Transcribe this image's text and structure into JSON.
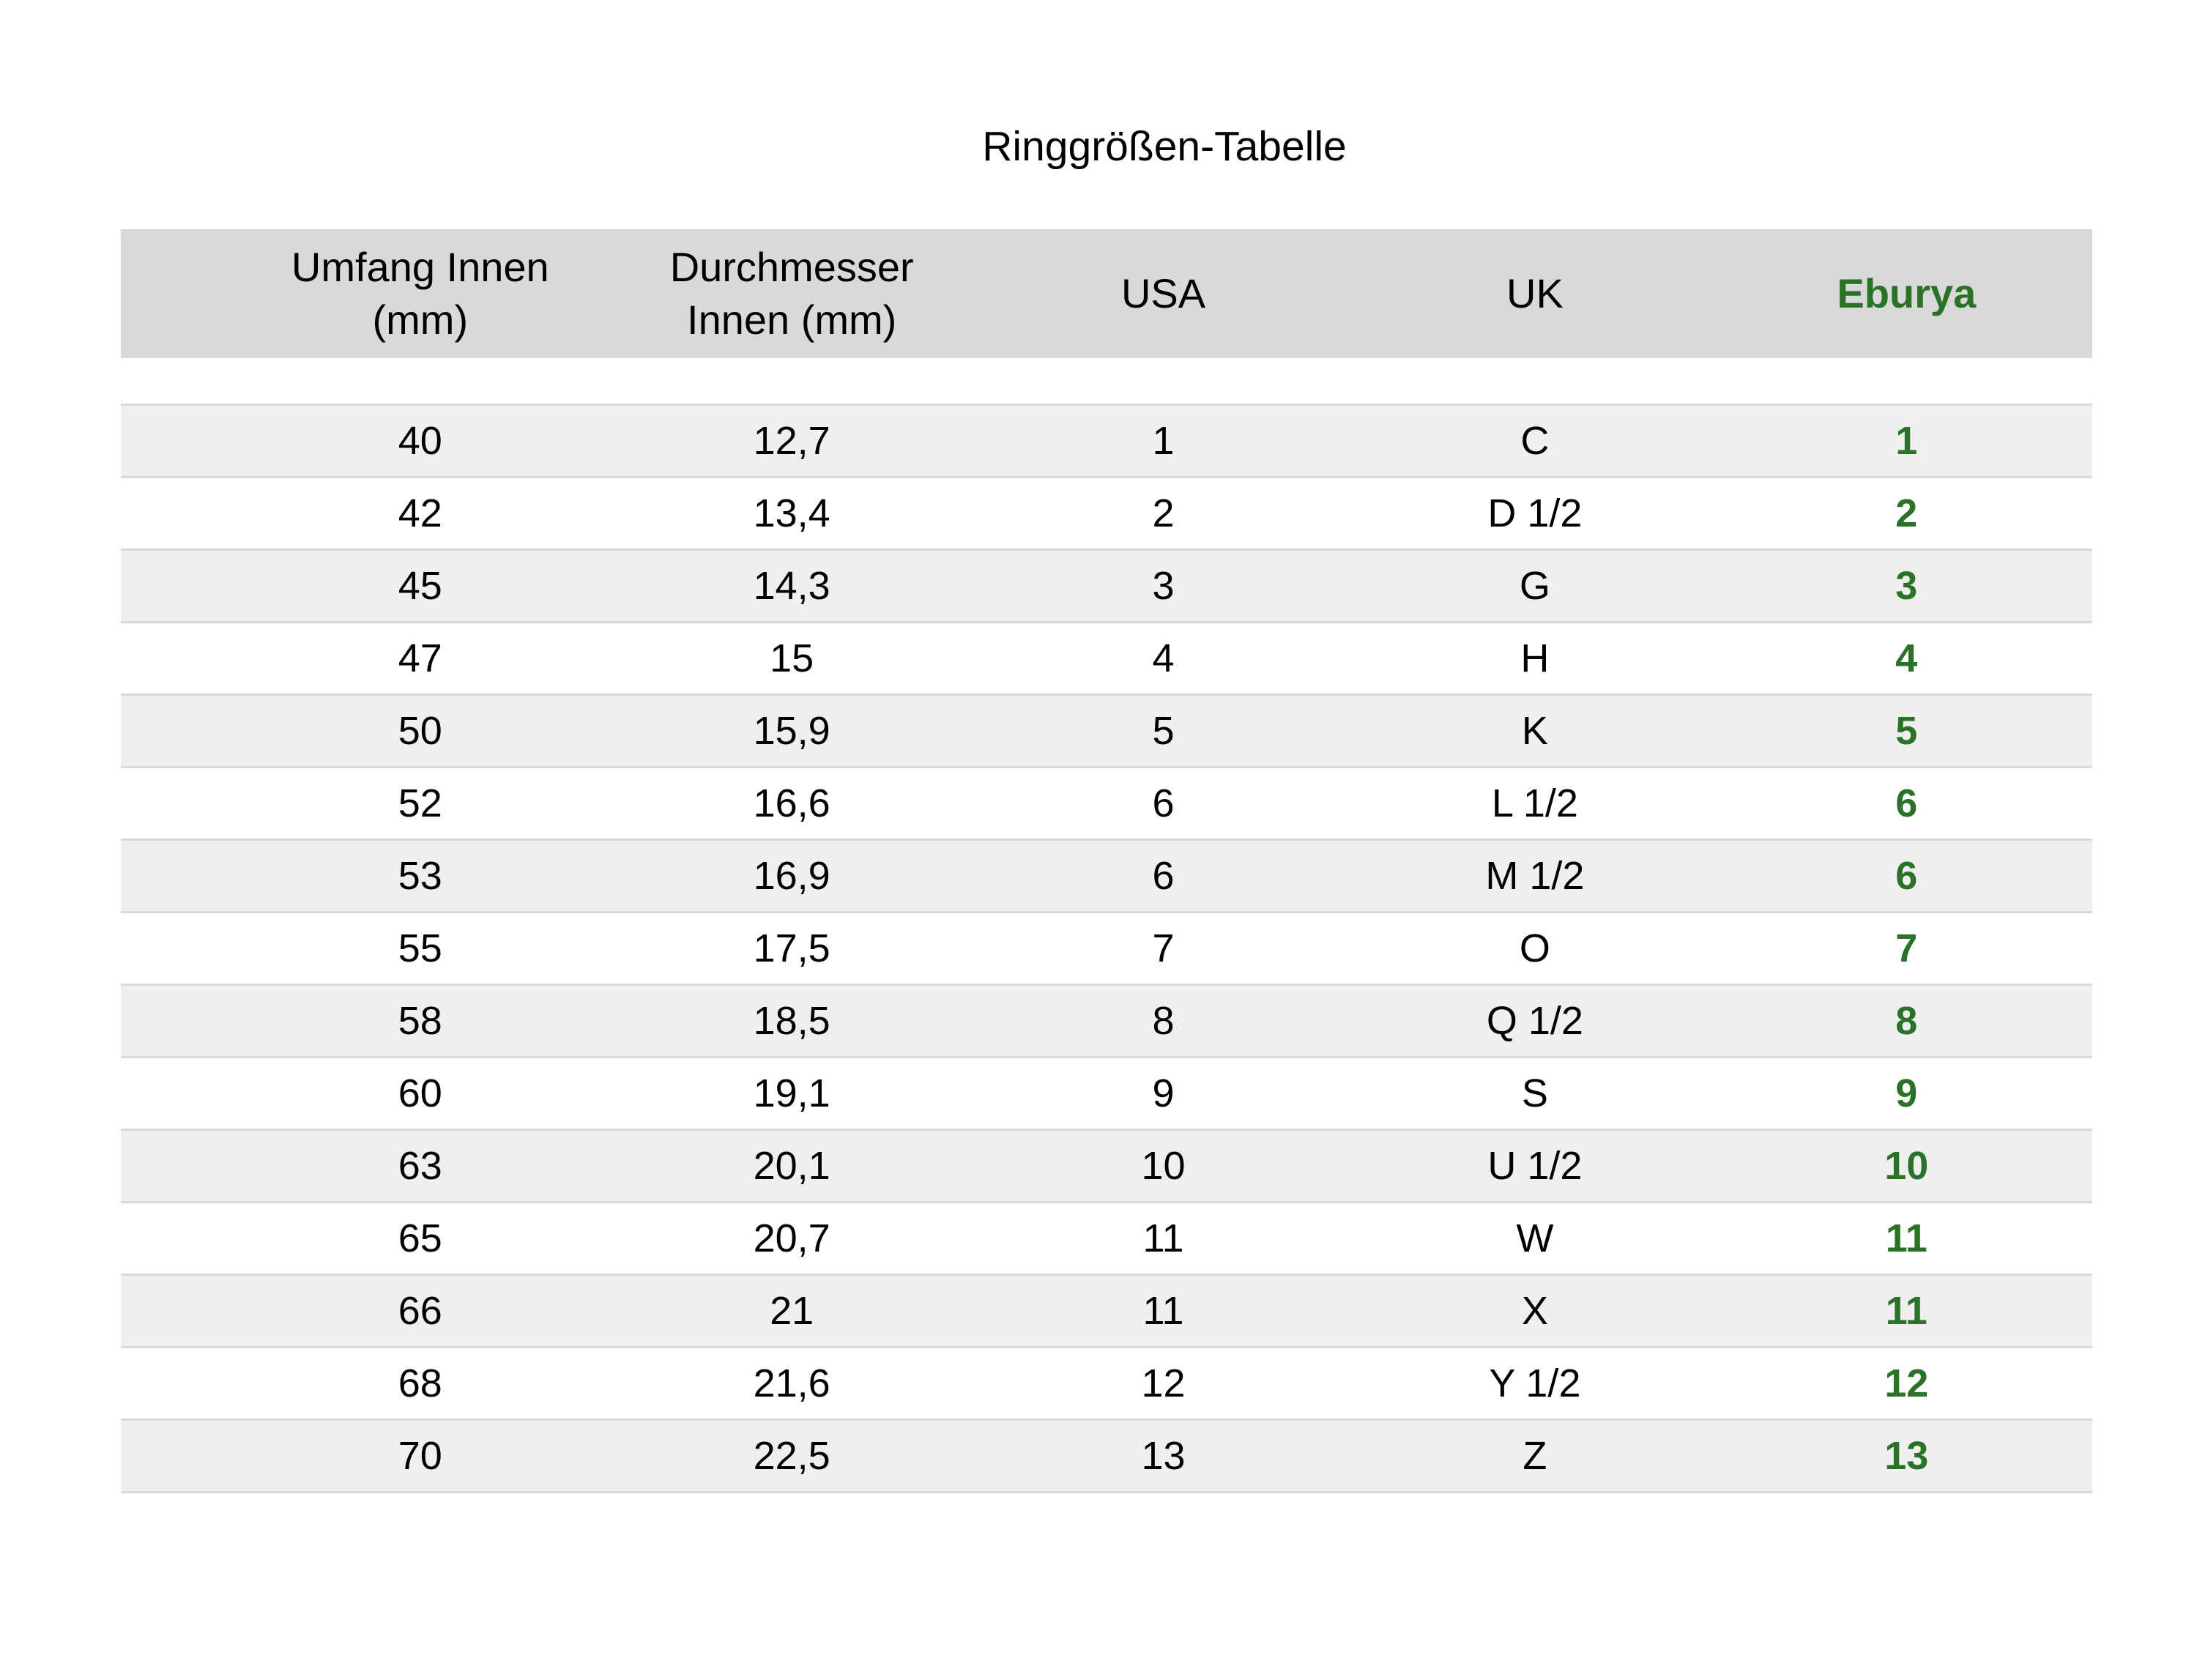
{
  "title": "Ringgrößen-Tabelle",
  "colors": {
    "accent_green": "#2b7229",
    "header_bg": "#d9d9d9",
    "row_alt_bg": "#efefef",
    "row_border": "#d9d9d9",
    "text": "#000000",
    "page_bg": "#ffffff"
  },
  "chart_data": {
    "type": "table",
    "title": "Ringgrößen-Tabelle",
    "columns": [
      {
        "label": "Umfang Innen (mm)",
        "display": "Umfang Innen\n(mm)"
      },
      {
        "label": "Durchmesser Innen (mm)",
        "display": "Durchmesser\nInnen (mm)"
      },
      {
        "label": "USA",
        "display": "USA"
      },
      {
        "label": "UK",
        "display": "UK"
      },
      {
        "label": "Eburya",
        "display": "Eburya"
      }
    ],
    "rows": [
      [
        "40",
        "12,7",
        "1",
        "C",
        "1"
      ],
      [
        "42",
        "13,4",
        "2",
        "D 1/2",
        "2"
      ],
      [
        "45",
        "14,3",
        "3",
        "G",
        "3"
      ],
      [
        "47",
        "15",
        "4",
        "H",
        "4"
      ],
      [
        "50",
        "15,9",
        "5",
        "K",
        "5"
      ],
      [
        "52",
        "16,6",
        "6",
        "L 1/2",
        "6"
      ],
      [
        "53",
        "16,9",
        "6",
        "M 1/2",
        "6"
      ],
      [
        "55",
        "17,5",
        "7",
        "O",
        "7"
      ],
      [
        "58",
        "18,5",
        "8",
        "Q 1/2",
        "8"
      ],
      [
        "60",
        "19,1",
        "9",
        "S",
        "9"
      ],
      [
        "63",
        "20,1",
        "10",
        "U 1/2",
        "10"
      ],
      [
        "65",
        "20,7",
        "11",
        "W",
        "11"
      ],
      [
        "66",
        "21",
        "11",
        "X",
        "11"
      ],
      [
        "68",
        "21,6",
        "12",
        "Y 1/2",
        "12"
      ],
      [
        "70",
        "22,5",
        "13",
        "Z",
        "13"
      ]
    ],
    "layout_hints": {
      "striped_rows": true,
      "first_stripe": "gray",
      "vertical_gridlines": false,
      "gap_below_header": true
    }
  }
}
